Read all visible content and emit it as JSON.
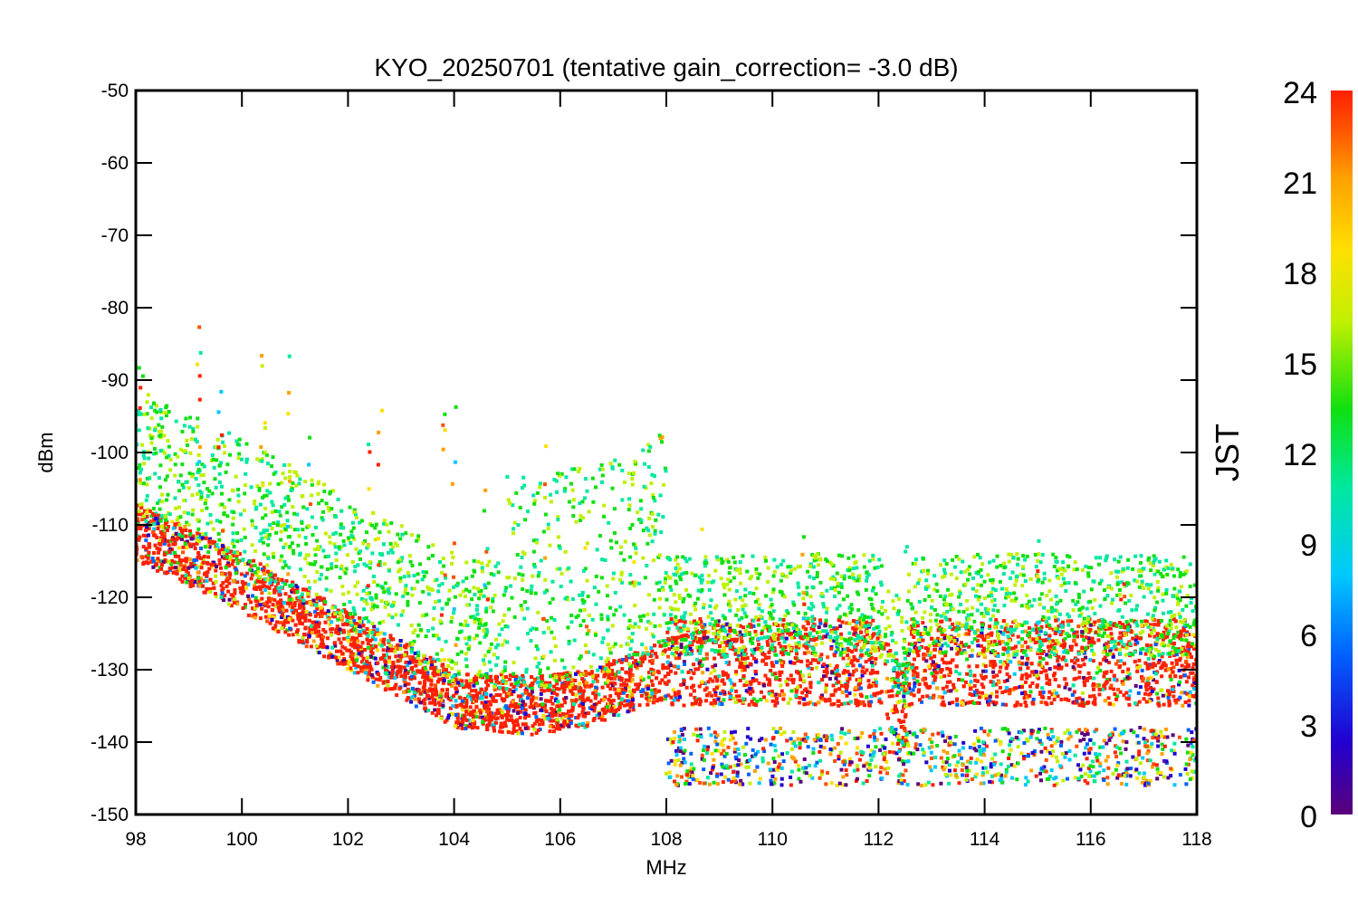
{
  "chart_data": {
    "type": "scatter",
    "title": "KYO_20250701 (tentative gain_correction= -3.0 dB)",
    "xlabel": "MHz",
    "ylabel": "dBm",
    "xlim": [
      98,
      118
    ],
    "ylim": [
      -150,
      -50
    ],
    "xticks": [
      "98",
      "100",
      "102",
      "104",
      "106",
      "108",
      "110",
      "112",
      "114",
      "116",
      "118"
    ],
    "yticks": [
      "-50",
      "-60",
      "-70",
      "-80",
      "-90",
      "-100",
      "-110",
      "-120",
      "-130",
      "-140",
      "-150"
    ],
    "colorbar": {
      "label": "JST",
      "range": [
        0,
        24
      ],
      "ticks": [
        "24",
        "21",
        "18",
        "15",
        "12",
        "9",
        "6",
        "3",
        "0"
      ],
      "colors": [
        "#5a007a",
        "#2200d0",
        "#0060ff",
        "#00c8ff",
        "#00e8a0",
        "#10e010",
        "#c0f000",
        "#ffe000",
        "#ffa000",
        "#ff5000",
        "#ff2000"
      ]
    },
    "series": [
      {
        "values_note": "",
        "floor_envelope": [
          [
            98,
            -113
          ],
          [
            100,
            -120
          ],
          [
            102,
            -128
          ],
          [
            104,
            -136
          ],
          [
            105.5,
            -137
          ],
          [
            106.5,
            -136
          ],
          [
            108,
            -132
          ],
          [
            108.05,
            -132
          ],
          [
            110,
            -132
          ],
          [
            112,
            -132
          ],
          [
            112.5,
            -140
          ],
          [
            112.6,
            -132
          ],
          [
            114,
            -132
          ],
          [
            116,
            -132
          ],
          [
            118,
            -132
          ]
        ],
        "peaks": [
          [
            98.1,
            -85
          ],
          [
            99.2,
            -74
          ],
          [
            99.6,
            -84
          ],
          [
            100.4,
            -76
          ],
          [
            100.9,
            -78
          ],
          [
            101.3,
            -95
          ],
          [
            102.4,
            -97
          ],
          [
            102.6,
            -94
          ],
          [
            103.8,
            -85
          ],
          [
            104.0,
            -89
          ],
          [
            104.6,
            -98
          ],
          [
            105.7,
            -98
          ],
          [
            106.5,
            -106
          ],
          [
            107.4,
            -100
          ],
          [
            107.9,
            -96
          ],
          [
            108.7,
            -108
          ],
          [
            110.6,
            -111
          ],
          [
            112.5,
            -113
          ],
          [
            115.0,
            -111
          ],
          [
            116.6,
            -113
          ]
        ]
      }
    ]
  }
}
